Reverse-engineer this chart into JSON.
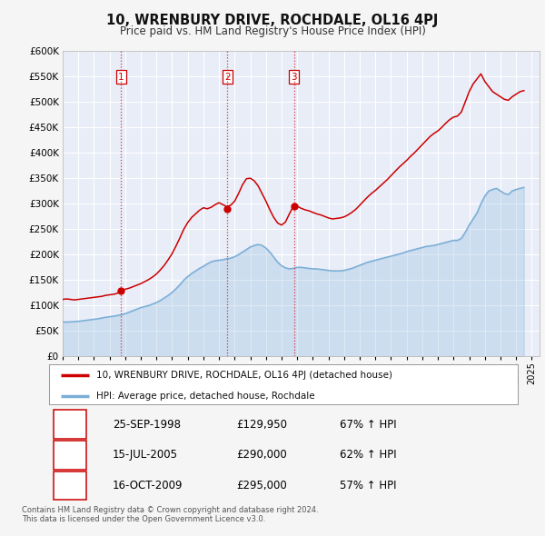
{
  "title": "10, WRENBURY DRIVE, ROCHDALE, OL16 4PJ",
  "subtitle": "Price paid vs. HM Land Registry's House Price Index (HPI)",
  "hpi_legend": "HPI: Average price, detached house, Rochdale",
  "property_legend": "10, WRENBURY DRIVE, ROCHDALE, OL16 4PJ (detached house)",
  "ylim": [
    0,
    600000
  ],
  "yticks": [
    0,
    50000,
    100000,
    150000,
    200000,
    250000,
    300000,
    350000,
    400000,
    450000,
    500000,
    550000,
    600000
  ],
  "xlim_start": 1995.0,
  "xlim_end": 2025.5,
  "fig_bg_color": "#f5f5f5",
  "plot_bg_color": "#e8edf8",
  "grid_color": "#ffffff",
  "line_color_property": "#cc0000",
  "line_color_hpi": "#7aaed6",
  "transactions": [
    {
      "label": "1",
      "date": 1998.73,
      "price": 129950,
      "pct": "67%",
      "date_str": "25-SEP-1998"
    },
    {
      "label": "2",
      "date": 2005.54,
      "price": 290000,
      "pct": "62%",
      "date_str": "15-JUL-2005"
    },
    {
      "label": "3",
      "date": 2009.79,
      "price": 295000,
      "pct": "57%",
      "date_str": "16-OCT-2009"
    }
  ],
  "footer": "Contains HM Land Registry data © Crown copyright and database right 2024.\nThis data is licensed under the Open Government Licence v3.0.",
  "hpi_data_x": [
    1995.0,
    1995.25,
    1995.5,
    1995.75,
    1996.0,
    1996.25,
    1996.5,
    1996.75,
    1997.0,
    1997.25,
    1997.5,
    1997.75,
    1998.0,
    1998.25,
    1998.5,
    1998.75,
    1999.0,
    1999.25,
    1999.5,
    1999.75,
    2000.0,
    2000.25,
    2000.5,
    2000.75,
    2001.0,
    2001.25,
    2001.5,
    2001.75,
    2002.0,
    2002.25,
    2002.5,
    2002.75,
    2003.0,
    2003.25,
    2003.5,
    2003.75,
    2004.0,
    2004.25,
    2004.5,
    2004.75,
    2005.0,
    2005.25,
    2005.5,
    2005.75,
    2006.0,
    2006.25,
    2006.5,
    2006.75,
    2007.0,
    2007.25,
    2007.5,
    2007.75,
    2008.0,
    2008.25,
    2008.5,
    2008.75,
    2009.0,
    2009.25,
    2009.5,
    2009.75,
    2010.0,
    2010.25,
    2010.5,
    2010.75,
    2011.0,
    2011.25,
    2011.5,
    2011.75,
    2012.0,
    2012.25,
    2012.5,
    2012.75,
    2013.0,
    2013.25,
    2013.5,
    2013.75,
    2014.0,
    2014.25,
    2014.5,
    2014.75,
    2015.0,
    2015.25,
    2015.5,
    2015.75,
    2016.0,
    2016.25,
    2016.5,
    2016.75,
    2017.0,
    2017.25,
    2017.5,
    2017.75,
    2018.0,
    2018.25,
    2018.5,
    2018.75,
    2019.0,
    2019.25,
    2019.5,
    2019.75,
    2020.0,
    2020.25,
    2020.5,
    2020.75,
    2021.0,
    2021.25,
    2021.5,
    2021.75,
    2022.0,
    2022.25,
    2022.5,
    2022.75,
    2023.0,
    2023.25,
    2023.5,
    2023.75,
    2024.0,
    2024.25,
    2024.5
  ],
  "hpi_data_y": [
    68000,
    67500,
    68000,
    68500,
    69000,
    70000,
    71000,
    72000,
    73000,
    74000,
    75500,
    77000,
    78000,
    79000,
    80500,
    82000,
    84000,
    87000,
    90000,
    93000,
    96000,
    98000,
    100000,
    103000,
    106000,
    110000,
    115000,
    120000,
    126000,
    133000,
    141000,
    150000,
    157000,
    163000,
    168000,
    173000,
    177000,
    182000,
    186000,
    188000,
    189000,
    190000,
    192000,
    193000,
    196000,
    200000,
    205000,
    210000,
    215000,
    218000,
    220000,
    218000,
    213000,
    205000,
    195000,
    185000,
    178000,
    174000,
    172000,
    173000,
    175000,
    175000,
    174000,
    173000,
    172000,
    172000,
    171000,
    170000,
    169000,
    168000,
    168000,
    168000,
    169000,
    171000,
    173000,
    176000,
    179000,
    182000,
    185000,
    187000,
    189000,
    191000,
    193000,
    195000,
    197000,
    199000,
    201000,
    203000,
    206000,
    208000,
    210000,
    212000,
    214000,
    216000,
    217000,
    218000,
    220000,
    222000,
    224000,
    226000,
    228000,
    228000,
    232000,
    244000,
    258000,
    270000,
    282000,
    300000,
    315000,
    325000,
    328000,
    330000,
    325000,
    320000,
    318000,
    325000,
    328000,
    330000,
    332000
  ],
  "property_data_x": [
    1995.0,
    1995.25,
    1995.5,
    1995.75,
    1996.0,
    1996.25,
    1996.5,
    1996.75,
    1997.0,
    1997.25,
    1997.5,
    1997.75,
    1998.0,
    1998.25,
    1998.5,
    1998.75,
    1999.0,
    1999.25,
    1999.5,
    1999.75,
    2000.0,
    2000.25,
    2000.5,
    2000.75,
    2001.0,
    2001.25,
    2001.5,
    2001.75,
    2002.0,
    2002.25,
    2002.5,
    2002.75,
    2003.0,
    2003.25,
    2003.5,
    2003.75,
    2004.0,
    2004.25,
    2004.5,
    2004.75,
    2005.0,
    2005.25,
    2005.5,
    2005.75,
    2006.0,
    2006.25,
    2006.5,
    2006.75,
    2007.0,
    2007.25,
    2007.5,
    2007.75,
    2008.0,
    2008.25,
    2008.5,
    2008.75,
    2009.0,
    2009.25,
    2009.5,
    2009.75,
    2010.0,
    2010.25,
    2010.5,
    2010.75,
    2011.0,
    2011.25,
    2011.5,
    2011.75,
    2012.0,
    2012.25,
    2012.5,
    2012.75,
    2013.0,
    2013.25,
    2013.5,
    2013.75,
    2014.0,
    2014.25,
    2014.5,
    2014.75,
    2015.0,
    2015.25,
    2015.5,
    2015.75,
    2016.0,
    2016.25,
    2016.5,
    2016.75,
    2017.0,
    2017.25,
    2017.5,
    2017.75,
    2018.0,
    2018.25,
    2018.5,
    2018.75,
    2019.0,
    2019.25,
    2019.5,
    2019.75,
    2020.0,
    2020.25,
    2020.5,
    2020.75,
    2021.0,
    2021.25,
    2021.5,
    2021.75,
    2022.0,
    2022.25,
    2022.5,
    2022.75,
    2023.0,
    2023.25,
    2023.5,
    2023.75,
    2024.0,
    2024.25,
    2024.5
  ],
  "property_data_y": [
    112000,
    113000,
    112000,
    111000,
    112000,
    113000,
    114000,
    115000,
    116000,
    117000,
    118000,
    120000,
    121000,
    122000,
    124000,
    129950,
    132000,
    134000,
    137000,
    140000,
    143000,
    147000,
    151000,
    156000,
    162000,
    170000,
    179000,
    190000,
    202000,
    217000,
    233000,
    250000,
    263000,
    273000,
    280000,
    287000,
    292000,
    290000,
    293000,
    298000,
    302000,
    298000,
    294000,
    297000,
    305000,
    320000,
    337000,
    349000,
    350000,
    345000,
    335000,
    320000,
    305000,
    288000,
    273000,
    262000,
    258000,
    264000,
    280000,
    295000,
    295000,
    291000,
    288000,
    286000,
    283000,
    280000,
    278000,
    275000,
    272000,
    270000,
    271000,
    272000,
    274000,
    278000,
    283000,
    289000,
    297000,
    305000,
    313000,
    320000,
    326000,
    333000,
    340000,
    347000,
    355000,
    363000,
    371000,
    378000,
    385000,
    393000,
    400000,
    408000,
    416000,
    424000,
    432000,
    438000,
    443000,
    450000,
    458000,
    465000,
    470000,
    472000,
    480000,
    500000,
    520000,
    535000,
    545000,
    555000,
    540000,
    530000,
    520000,
    515000,
    510000,
    505000,
    503000,
    510000,
    515000,
    520000,
    522000
  ]
}
